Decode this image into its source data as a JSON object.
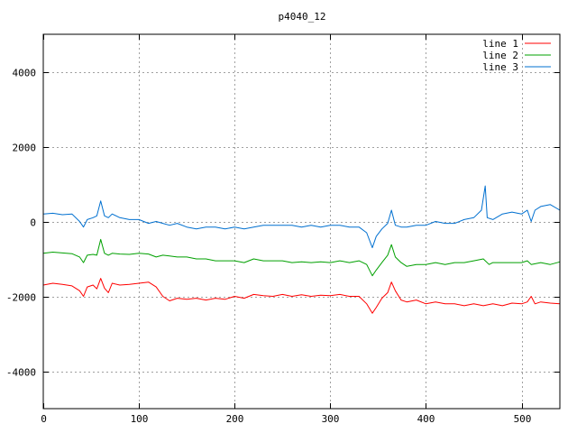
{
  "chart_data": {
    "type": "line",
    "title": "p4040_12",
    "xlabel": "",
    "ylabel": "",
    "xlim": [
      0,
      540
    ],
    "ylim": [
      -5000,
      5000
    ],
    "xticks": [
      0,
      100,
      200,
      300,
      400,
      500
    ],
    "yticks": [
      -4000,
      -2000,
      0,
      2000,
      4000
    ],
    "grid": true,
    "legend_position": "top-right",
    "series": [
      {
        "name": "line 1",
        "color": "#ff0000",
        "points": [
          [
            0,
            -1700
          ],
          [
            10,
            -1650
          ],
          [
            20,
            -1680
          ],
          [
            30,
            -1720
          ],
          [
            38,
            -1850
          ],
          [
            42,
            -2000
          ],
          [
            46,
            -1750
          ],
          [
            52,
            -1700
          ],
          [
            56,
            -1800
          ],
          [
            60,
            -1520
          ],
          [
            64,
            -1780
          ],
          [
            68,
            -1900
          ],
          [
            72,
            -1650
          ],
          [
            80,
            -1700
          ],
          [
            90,
            -1680
          ],
          [
            100,
            -1650
          ],
          [
            110,
            -1620
          ],
          [
            118,
            -1750
          ],
          [
            125,
            -2000
          ],
          [
            132,
            -2120
          ],
          [
            140,
            -2050
          ],
          [
            150,
            -2080
          ],
          [
            160,
            -2050
          ],
          [
            170,
            -2100
          ],
          [
            180,
            -2050
          ],
          [
            190,
            -2080
          ],
          [
            200,
            -2000
          ],
          [
            210,
            -2050
          ],
          [
            220,
            -1950
          ],
          [
            230,
            -1980
          ],
          [
            240,
            -2000
          ],
          [
            250,
            -1950
          ],
          [
            260,
            -2000
          ],
          [
            270,
            -1960
          ],
          [
            280,
            -2000
          ],
          [
            290,
            -1970
          ],
          [
            300,
            -1980
          ],
          [
            310,
            -1950
          ],
          [
            320,
            -2000
          ],
          [
            330,
            -2000
          ],
          [
            338,
            -2200
          ],
          [
            344,
            -2450
          ],
          [
            348,
            -2300
          ],
          [
            354,
            -2050
          ],
          [
            360,
            -1900
          ],
          [
            364,
            -1620
          ],
          [
            368,
            -1850
          ],
          [
            374,
            -2100
          ],
          [
            380,
            -2150
          ],
          [
            390,
            -2100
          ],
          [
            400,
            -2200
          ],
          [
            410,
            -2150
          ],
          [
            420,
            -2200
          ],
          [
            430,
            -2200
          ],
          [
            440,
            -2250
          ],
          [
            450,
            -2200
          ],
          [
            460,
            -2250
          ],
          [
            470,
            -2200
          ],
          [
            480,
            -2250
          ],
          [
            490,
            -2180
          ],
          [
            500,
            -2200
          ],
          [
            506,
            -2150
          ],
          [
            510,
            -2000
          ],
          [
            514,
            -2200
          ],
          [
            520,
            -2150
          ],
          [
            530,
            -2180
          ],
          [
            540,
            -2200
          ]
        ]
      },
      {
        "name": "line 2",
        "color": "#00a000",
        "points": [
          [
            0,
            -850
          ],
          [
            10,
            -820
          ],
          [
            20,
            -840
          ],
          [
            30,
            -860
          ],
          [
            38,
            -950
          ],
          [
            42,
            -1100
          ],
          [
            46,
            -900
          ],
          [
            52,
            -880
          ],
          [
            56,
            -900
          ],
          [
            60,
            -480
          ],
          [
            64,
            -850
          ],
          [
            68,
            -900
          ],
          [
            72,
            -850
          ],
          [
            80,
            -870
          ],
          [
            90,
            -880
          ],
          [
            100,
            -850
          ],
          [
            110,
            -870
          ],
          [
            118,
            -950
          ],
          [
            125,
            -900
          ],
          [
            132,
            -920
          ],
          [
            140,
            -950
          ],
          [
            150,
            -950
          ],
          [
            160,
            -1000
          ],
          [
            170,
            -1000
          ],
          [
            180,
            -1050
          ],
          [
            190,
            -1050
          ],
          [
            200,
            -1050
          ],
          [
            210,
            -1100
          ],
          [
            220,
            -1000
          ],
          [
            230,
            -1050
          ],
          [
            240,
            -1050
          ],
          [
            250,
            -1050
          ],
          [
            260,
            -1100
          ],
          [
            270,
            -1080
          ],
          [
            280,
            -1100
          ],
          [
            290,
            -1080
          ],
          [
            300,
            -1100
          ],
          [
            310,
            -1050
          ],
          [
            320,
            -1100
          ],
          [
            330,
            -1050
          ],
          [
            338,
            -1150
          ],
          [
            344,
            -1450
          ],
          [
            348,
            -1300
          ],
          [
            354,
            -1100
          ],
          [
            360,
            -900
          ],
          [
            364,
            -620
          ],
          [
            368,
            -950
          ],
          [
            374,
            -1100
          ],
          [
            380,
            -1200
          ],
          [
            390,
            -1150
          ],
          [
            400,
            -1150
          ],
          [
            410,
            -1100
          ],
          [
            420,
            -1150
          ],
          [
            430,
            -1100
          ],
          [
            440,
            -1100
          ],
          [
            450,
            -1050
          ],
          [
            460,
            -1000
          ],
          [
            466,
            -1150
          ],
          [
            470,
            -1100
          ],
          [
            480,
            -1100
          ],
          [
            490,
            -1100
          ],
          [
            500,
            -1100
          ],
          [
            506,
            -1050
          ],
          [
            510,
            -1150
          ],
          [
            520,
            -1100
          ],
          [
            530,
            -1150
          ],
          [
            540,
            -1080
          ]
        ]
      },
      {
        "name": "line 3",
        "color": "#0070d0",
        "points": [
          [
            0,
            200
          ],
          [
            10,
            220
          ],
          [
            20,
            180
          ],
          [
            30,
            200
          ],
          [
            38,
            0
          ],
          [
            42,
            -150
          ],
          [
            46,
            50
          ],
          [
            52,
            100
          ],
          [
            56,
            150
          ],
          [
            60,
            550
          ],
          [
            64,
            150
          ],
          [
            68,
            100
          ],
          [
            72,
            200
          ],
          [
            80,
            100
          ],
          [
            90,
            50
          ],
          [
            100,
            50
          ],
          [
            110,
            -50
          ],
          [
            118,
            0
          ],
          [
            125,
            -50
          ],
          [
            132,
            -100
          ],
          [
            140,
            -50
          ],
          [
            150,
            -150
          ],
          [
            160,
            -200
          ],
          [
            170,
            -150
          ],
          [
            180,
            -150
          ],
          [
            190,
            -200
          ],
          [
            200,
            -150
          ],
          [
            210,
            -200
          ],
          [
            220,
            -150
          ],
          [
            230,
            -100
          ],
          [
            240,
            -100
          ],
          [
            250,
            -100
          ],
          [
            260,
            -100
          ],
          [
            270,
            -150
          ],
          [
            280,
            -100
          ],
          [
            290,
            -150
          ],
          [
            300,
            -100
          ],
          [
            310,
            -100
          ],
          [
            320,
            -150
          ],
          [
            330,
            -150
          ],
          [
            338,
            -300
          ],
          [
            344,
            -700
          ],
          [
            348,
            -400
          ],
          [
            354,
            -200
          ],
          [
            360,
            -50
          ],
          [
            364,
            300
          ],
          [
            368,
            -100
          ],
          [
            374,
            -150
          ],
          [
            380,
            -150
          ],
          [
            390,
            -100
          ],
          [
            400,
            -100
          ],
          [
            410,
            0
          ],
          [
            420,
            -50
          ],
          [
            430,
            -50
          ],
          [
            440,
            50
          ],
          [
            450,
            100
          ],
          [
            458,
            300
          ],
          [
            462,
            950
          ],
          [
            464,
            100
          ],
          [
            470,
            50
          ],
          [
            480,
            200
          ],
          [
            490,
            250
          ],
          [
            500,
            200
          ],
          [
            506,
            300
          ],
          [
            510,
            0
          ],
          [
            514,
            300
          ],
          [
            520,
            400
          ],
          [
            530,
            450
          ],
          [
            540,
            300
          ]
        ]
      }
    ]
  }
}
